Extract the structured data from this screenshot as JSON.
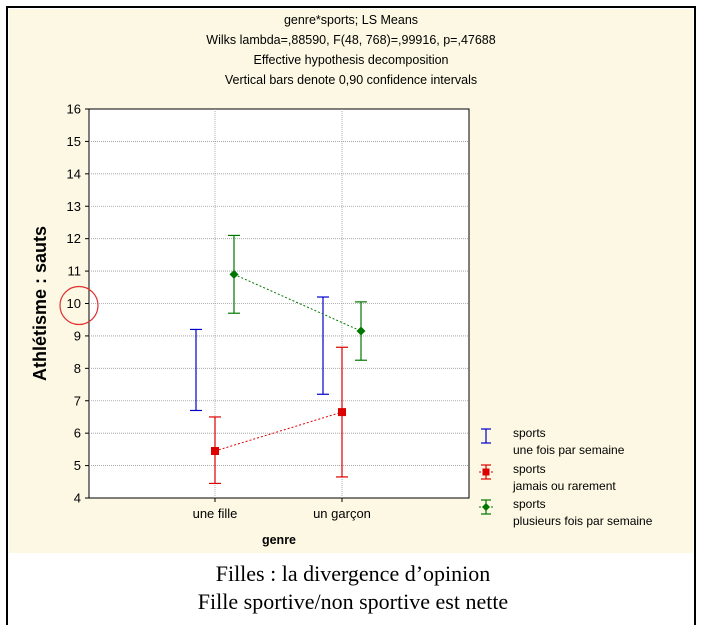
{
  "chart_data": {
    "type": "line",
    "title": "genre*sports; LS Means",
    "subtitle_lines": [
      "Wilks lambda=,88590, F(48, 768)=,99916, p=,47688",
      "Effective hypothesis decomposition",
      "Vertical bars denote 0,90 confidence intervals"
    ],
    "xlabel": "genre",
    "ylabel": "Athlétisme : sauts",
    "categories": [
      "une fille",
      "un garçon"
    ],
    "ylim": [
      4,
      16
    ],
    "yticks": [
      "4",
      "5",
      "6",
      "7",
      "8",
      "9",
      "10",
      "11",
      "12",
      "13",
      "14",
      "15",
      "16"
    ],
    "grid": true,
    "legend_position": "bottom-right",
    "series": [
      {
        "name_lines": [
          "sports",
          "une fois par semaine"
        ],
        "color": "#0000cc",
        "marker": "none",
        "values": [
          7.95,
          8.7
        ],
        "ci_low": [
          6.7,
          7.2
        ],
        "ci_high": [
          9.2,
          10.2
        ]
      },
      {
        "name_lines": [
          "sports",
          "jamais ou rarement"
        ],
        "color": "#dd0000",
        "marker": "square",
        "values": [
          5.45,
          6.65
        ],
        "ci_low": [
          4.45,
          4.65
        ],
        "ci_high": [
          6.5,
          8.65
        ]
      },
      {
        "name_lines": [
          "sports",
          "plusieurs fois par semaine"
        ],
        "color": "#007700",
        "marker": "diamond",
        "values": [
          10.9,
          9.15
        ],
        "ci_low": [
          9.7,
          8.25
        ],
        "ci_high": [
          12.1,
          10.05
        ]
      }
    ],
    "highlight_color": "#e03030"
  },
  "caption": {
    "line1": "Filles : la divergence d’opinion",
    "line2": "Fille sportive/non sportive est nette"
  }
}
